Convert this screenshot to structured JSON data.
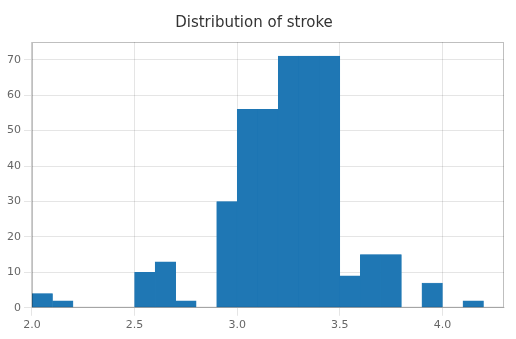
{
  "chart_data": {
    "type": "histogram",
    "title": "Distribution of stroke",
    "bins": [
      2.0,
      2.1,
      2.2,
      2.3,
      2.4,
      2.5,
      2.6,
      2.7,
      2.8,
      2.9,
      3.0,
      3.1,
      3.2,
      3.3,
      3.4,
      3.5,
      3.6,
      3.7,
      3.8,
      3.9,
      4.0,
      4.1,
      4.2,
      4.3
    ],
    "values": [
      4,
      2,
      0,
      0,
      0,
      10,
      13,
      2,
      0,
      30,
      56,
      56,
      71,
      71,
      71,
      9,
      15,
      15,
      0,
      7,
      0,
      2,
      0
    ],
    "color": "#1f77b4",
    "xlim": [
      2.0,
      4.3
    ],
    "ylim": [
      0,
      75
    ],
    "xticks": [
      {
        "value": 2.0,
        "label": "2.0"
      },
      2.5,
      {
        "value": 3.0,
        "label": "3.0"
      },
      3.5,
      {
        "value": 4.0,
        "label": "4.0"
      }
    ],
    "yticks": [
      0,
      10,
      20,
      30,
      40,
      50,
      60,
      70
    ],
    "grid": true
  }
}
